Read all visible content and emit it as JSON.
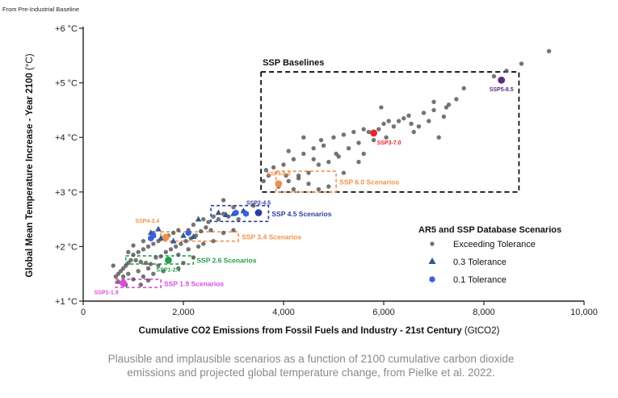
{
  "header_note": "From Pre-Industrial Baseline",
  "caption": "Plausible and implausible scenarios as a function of 2100 cumulative carbon dioxide emissions and projected global temperature change, from Pielke et al. 2022.",
  "chart_data": {
    "type": "scatter",
    "xlabel": "Cumulative CO2 Emissions from Fossil Fuels and Industry - 21st Century",
    "xlabel_unit": "(GtCO2)",
    "ylabel": "Global Mean Temperature Increase - Year 2100",
    "ylabel_unit": "(°C)",
    "xlim": [
      0,
      10000
    ],
    "ylim": [
      1,
      6
    ],
    "x_ticks": [
      {
        "value": 0,
        "label": "0"
      },
      {
        "value": 2000,
        "label": "2,000"
      },
      {
        "value": 4000,
        "label": "4,000"
      },
      {
        "value": 6000,
        "label": "6,000"
      },
      {
        "value": 8000,
        "label": "8,000"
      },
      {
        "value": 10000,
        "label": "10,000"
      }
    ],
    "y_ticks": [
      {
        "value": 1,
        "label": "+1 °C"
      },
      {
        "value": 2,
        "label": "+2 °C"
      },
      {
        "value": 3,
        "label": "+3 °C"
      },
      {
        "value": 4,
        "label": "+4 °C"
      },
      {
        "value": 5,
        "label": "+5 °C"
      },
      {
        "value": 6,
        "label": "+6 °C"
      }
    ],
    "grid": false,
    "legend": {
      "title": "AR5 and SSP Database Scenarios",
      "placement": "lower-right",
      "entries": [
        {
          "label": "Exceeding Tolerance",
          "marker": "circle",
          "color": "#6e6e6e"
        },
        {
          "label": "0.3 Tolerance",
          "marker": "triangle",
          "color": "#2f5b8c"
        },
        {
          "label": "0.1 Tolerance",
          "marker": "hexagon",
          "color": "#3b5fe0"
        }
      ]
    },
    "region_boxes": [
      {
        "label": "SSP Baselines",
        "x0": 3550,
        "x1": 8700,
        "y0": 3.0,
        "y1": 5.2,
        "color": "#111111",
        "label_side": "top"
      },
      {
        "label": "SSP 6.0 Scenarios",
        "x0": 3850,
        "x1": 5050,
        "y0": 3.0,
        "y1": 3.38,
        "color": "#f0914a",
        "label_side": "right"
      },
      {
        "label": "SSP 4.5 Scenarios",
        "x0": 2550,
        "x1": 3700,
        "y0": 2.46,
        "y1": 2.75,
        "color": "#2c3e9e",
        "label_side": "right"
      },
      {
        "label": "SSP 3.4 Scenarios",
        "x0": 1550,
        "x1": 3100,
        "y0": 2.1,
        "y1": 2.27,
        "color": "#f0914a",
        "label_side": "right"
      },
      {
        "label": "SSP 2.6 Scenarios",
        "x0": 850,
        "x1": 2200,
        "y0": 1.68,
        "y1": 1.83,
        "color": "#22a04b",
        "label_side": "right"
      },
      {
        "label": "SSP 1.9 Scenarios",
        "x0": 650,
        "x1": 1550,
        "y0": 1.25,
        "y1": 1.4,
        "color": "#d84be0",
        "label_side": "right"
      }
    ],
    "ssp_markers": [
      {
        "name": "SSP5-8.5",
        "x": 8350,
        "y": 5.05,
        "color": "#5b2a86",
        "label_pos": "below"
      },
      {
        "name": "SSP3-7.0",
        "x": 5800,
        "y": 4.08,
        "color": "#e8232c",
        "label_pos": "below-right"
      },
      {
        "name": "SSP4-6.0",
        "x": 3900,
        "y": 3.15,
        "color": "#f0914a",
        "label_pos": "above"
      },
      {
        "name": "SSP2-4.5",
        "x": 3500,
        "y": 2.62,
        "color": "#2c3e9e",
        "label_pos": "above"
      },
      {
        "name": "SSP4-3.4",
        "x": 1650,
        "y": 2.17,
        "color": "#f0914a",
        "label_pos": "above-left"
      },
      {
        "name": "SSP1-2.6",
        "x": 1700,
        "y": 1.75,
        "color": "#22a04b",
        "label_pos": "below"
      },
      {
        "name": "SSP1-1.9",
        "x": 800,
        "y": 1.33,
        "color": "#d84be0",
        "label_pos": "below-left"
      }
    ],
    "series": [
      {
        "name": "Exceeding Tolerance",
        "marker": "circle",
        "color": "#555555",
        "points": [
          [
            9300,
            5.58
          ],
          [
            8750,
            5.35
          ],
          [
            8450,
            5.22
          ],
          [
            8200,
            5.12
          ],
          [
            7600,
            4.9
          ],
          [
            7450,
            4.7
          ],
          [
            7250,
            4.55
          ],
          [
            7000,
            4.5
          ],
          [
            6900,
            4.3
          ],
          [
            6700,
            4.2
          ],
          [
            7200,
            4.38
          ],
          [
            6500,
            4.4
          ],
          [
            6400,
            4.35
          ],
          [
            6300,
            4.3
          ],
          [
            6200,
            4.2
          ],
          [
            6100,
            4.3
          ],
          [
            6000,
            4.25
          ],
          [
            5900,
            4.15
          ],
          [
            5700,
            4.1
          ],
          [
            5500,
            3.9
          ],
          [
            5300,
            3.8
          ],
          [
            5100,
            3.65
          ],
          [
            4900,
            3.55
          ],
          [
            4700,
            3.5
          ],
          [
            4500,
            3.35
          ],
          [
            4300,
            3.3
          ],
          [
            4100,
            3.2
          ],
          [
            3900,
            3.1
          ],
          [
            3700,
            3.3
          ],
          [
            3800,
            3.45
          ],
          [
            4000,
            3.5
          ],
          [
            4200,
            3.6
          ],
          [
            4400,
            3.7
          ],
          [
            4600,
            3.8
          ],
          [
            4800,
            3.85
          ],
          [
            5000,
            4.0
          ],
          [
            5200,
            4.05
          ],
          [
            5400,
            4.1
          ],
          [
            5600,
            4.15
          ],
          [
            6050,
            4.0
          ],
          [
            6600,
            4.1
          ],
          [
            7100,
            4.0
          ],
          [
            4300,
            3.25
          ],
          [
            4500,
            3.15
          ],
          [
            4700,
            3.05
          ],
          [
            4900,
            3.1
          ],
          [
            5500,
            3.55
          ],
          [
            5200,
            3.35
          ],
          [
            4050,
            3.3
          ],
          [
            4200,
            3.05
          ],
          [
            4600,
            3.6
          ],
          [
            5600,
            3.7
          ],
          [
            4400,
            4.0
          ],
          [
            5950,
            4.55
          ],
          [
            6800,
            4.45
          ],
          [
            7300,
            4.6
          ],
          [
            6550,
            4.25
          ],
          [
            7000,
            4.65
          ],
          [
            5800,
            3.95
          ],
          [
            4750,
            3.95
          ],
          [
            5050,
            3.7
          ],
          [
            4100,
            3.75
          ],
          [
            3600,
            3.2
          ],
          [
            3650,
            3.4
          ],
          [
            3400,
            2.75
          ],
          [
            3200,
            2.65
          ],
          [
            3000,
            2.72
          ],
          [
            2800,
            2.6
          ],
          [
            2600,
            2.55
          ],
          [
            2400,
            2.5
          ],
          [
            2200,
            2.4
          ],
          [
            2100,
            2.3
          ],
          [
            1900,
            2.3
          ],
          [
            1800,
            2.25
          ],
          [
            1700,
            2.2
          ],
          [
            1600,
            2.15
          ],
          [
            1500,
            2.1
          ],
          [
            1400,
            2.05
          ],
          [
            1300,
            2.0
          ],
          [
            1200,
            1.95
          ],
          [
            1100,
            1.9
          ],
          [
            1000,
            1.85
          ],
          [
            950,
            1.75
          ],
          [
            900,
            1.7
          ],
          [
            850,
            1.65
          ],
          [
            800,
            1.6
          ],
          [
            750,
            1.55
          ],
          [
            700,
            1.5
          ],
          [
            650,
            1.45
          ],
          [
            1050,
            1.75
          ],
          [
            1150,
            1.72
          ],
          [
            1250,
            1.7
          ],
          [
            1350,
            1.68
          ],
          [
            1450,
            1.8
          ],
          [
            1550,
            1.82
          ],
          [
            1650,
            1.9
          ],
          [
            1750,
            1.95
          ],
          [
            1850,
            2.0
          ],
          [
            1950,
            2.05
          ],
          [
            2050,
            2.1
          ],
          [
            2150,
            2.15
          ],
          [
            2250,
            2.2
          ],
          [
            2350,
            2.28
          ],
          [
            2450,
            2.35
          ],
          [
            2500,
            2.45
          ],
          [
            2700,
            2.5
          ],
          [
            2900,
            2.55
          ],
          [
            3100,
            2.5
          ],
          [
            2800,
            2.85
          ],
          [
            2550,
            2.3
          ],
          [
            2300,
            2.0
          ],
          [
            2100,
            1.95
          ],
          [
            1900,
            1.85
          ],
          [
            1700,
            1.75
          ],
          [
            1500,
            1.65
          ],
          [
            1300,
            1.6
          ],
          [
            1100,
            1.55
          ],
          [
            900,
            1.5
          ],
          [
            800,
            1.45
          ],
          [
            1000,
            1.4
          ],
          [
            1200,
            1.45
          ],
          [
            1400,
            1.5
          ],
          [
            1600,
            1.55
          ],
          [
            1900,
            1.6
          ],
          [
            2200,
            1.8
          ],
          [
            2600,
            2.1
          ],
          [
            2800,
            2.25
          ],
          [
            3000,
            2.3
          ],
          [
            1000,
            2.02
          ],
          [
            1200,
            2.1
          ],
          [
            1400,
            2.25
          ],
          [
            900,
            1.9
          ],
          [
            700,
            1.35
          ],
          [
            850,
            1.3
          ],
          [
            1150,
            1.3
          ],
          [
            1300,
            1.38
          ],
          [
            600,
            1.65
          ],
          [
            2400,
            2.05
          ],
          [
            2000,
            1.7
          ]
        ]
      },
      {
        "name": "0.3 Tolerance",
        "marker": "triangle",
        "color": "#2f5b8c",
        "points": [
          [
            1500,
            2.32
          ],
          [
            2000,
            2.2
          ],
          [
            2200,
            2.18
          ],
          [
            1800,
            2.1
          ],
          [
            2700,
            2.62
          ],
          [
            2850,
            2.58
          ],
          [
            3000,
            2.6
          ],
          [
            3200,
            2.65
          ],
          [
            2300,
            2.5
          ],
          [
            1350,
            2.25
          ],
          [
            1550,
            2.15
          ]
        ]
      },
      {
        "name": "0.1 Tolerance",
        "marker": "hexagon",
        "color": "#3b5fe0",
        "points": [
          [
            1350,
            2.15
          ],
          [
            1400,
            2.2
          ],
          [
            2100,
            2.25
          ],
          [
            3250,
            2.6
          ],
          [
            3050,
            2.62
          ]
        ]
      }
    ]
  }
}
